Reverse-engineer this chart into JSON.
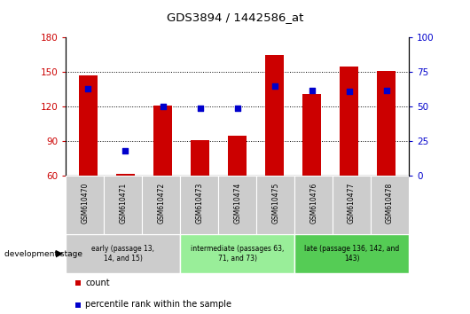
{
  "title": "GDS3894 / 1442586_at",
  "samples": [
    "GSM610470",
    "GSM610471",
    "GSM610472",
    "GSM610473",
    "GSM610474",
    "GSM610475",
    "GSM610476",
    "GSM610477",
    "GSM610478"
  ],
  "counts": [
    147,
    62,
    121,
    91,
    95,
    165,
    131,
    155,
    151
  ],
  "percentile_ranks": [
    63,
    18,
    50,
    49,
    49,
    65,
    62,
    61,
    62
  ],
  "ylim_left": [
    60,
    180
  ],
  "ylim_right": [
    0,
    100
  ],
  "yticks_left": [
    60,
    90,
    120,
    150,
    180
  ],
  "yticks_right": [
    0,
    25,
    50,
    75,
    100
  ],
  "bar_color": "#cc0000",
  "dot_color": "#0000cc",
  "bar_width": 0.5,
  "groups": [
    {
      "label": "early (passage 13,\n14, and 15)",
      "indices": [
        0,
        1,
        2
      ],
      "color": "#cccccc"
    },
    {
      "label": "intermediate (passages 63,\n71, and 73)",
      "indices": [
        3,
        4,
        5
      ],
      "color": "#99ee99"
    },
    {
      "label": "late (passage 136, 142, and\n143)",
      "indices": [
        6,
        7,
        8
      ],
      "color": "#55cc55"
    }
  ],
  "legend_count_label": "count",
  "legend_percentile_label": "percentile rank within the sample",
  "dev_stage_label": "development stage",
  "plot_bg_color": "#ffffff",
  "outer_bg_color": "#ffffff",
  "tick_label_color_left": "#cc0000",
  "tick_label_color_right": "#0000cc"
}
